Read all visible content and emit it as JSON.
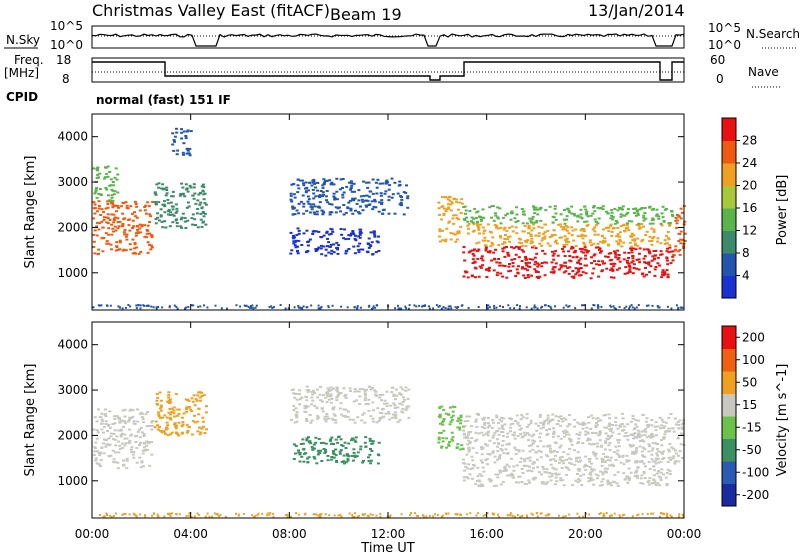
{
  "header": {
    "title": "Christmas Valley East (fitACF)",
    "beam": "Beam 19",
    "date": "13/Jan/2014"
  },
  "nsky_panel": {
    "left_label": "N.Sky",
    "right_label": "N.Search",
    "left_ticks": [
      "10^5",
      "10^0"
    ],
    "right_ticks": [
      "10^5",
      "10^0"
    ]
  },
  "freq_panel": {
    "left_label_1": "Freq.",
    "left_label_2": "[MHz]",
    "right_label": "Nave",
    "left_ticks": [
      "18",
      "8"
    ],
    "right_ticks": [
      "60",
      "0"
    ],
    "cpid_label": "CPID",
    "cpid_value": "normal (fast) 151 IF"
  },
  "chart_data": [
    {
      "type": "heatmap",
      "name": "power",
      "ylabel": "Slant Range [km]",
      "yticks": [
        1000,
        2000,
        3000,
        4000
      ],
      "ylim": [
        180,
        4500
      ],
      "colorbar_label": "Power [dB]",
      "colorbar_ticks": [
        "4",
        "8",
        "12",
        "16",
        "20",
        "24",
        "28"
      ],
      "colors": [
        "#1a32d2",
        "#2255b0",
        "#3d8a6a",
        "#5ab44a",
        "#a8c83a",
        "#f0a020",
        "#f05a10",
        "#e81010"
      ],
      "patches": [
        {
          "t0": 0.0,
          "t1": 2.4,
          "r0": 1400,
          "r1": 2600,
          "level": 6
        },
        {
          "t0": 0.0,
          "t1": 1.0,
          "r0": 2600,
          "r1": 3400,
          "level": 3
        },
        {
          "t0": 2.5,
          "t1": 4.6,
          "r0": 2000,
          "r1": 3000,
          "level": 2
        },
        {
          "t0": 3.2,
          "t1": 4.0,
          "r0": 3600,
          "r1": 4200,
          "level": 1
        },
        {
          "t0": 8.0,
          "t1": 12.8,
          "r0": 2300,
          "r1": 3100,
          "level": 1
        },
        {
          "t0": 8.0,
          "t1": 11.6,
          "r0": 1400,
          "r1": 2000,
          "level": 0
        },
        {
          "t0": 14.0,
          "t1": 15.0,
          "r0": 1700,
          "r1": 2700,
          "level": 5
        },
        {
          "t0": 15.0,
          "t1": 23.5,
          "r0": 900,
          "r1": 1600,
          "level": 7
        },
        {
          "t0": 15.0,
          "t1": 23.5,
          "r0": 1600,
          "r1": 2100,
          "level": 5
        },
        {
          "t0": 15.0,
          "t1": 23.5,
          "r0": 2100,
          "r1": 2500,
          "level": 3
        },
        {
          "t0": 23.5,
          "t1": 24.0,
          "r0": 1400,
          "r1": 2500,
          "level": 6
        }
      ]
    },
    {
      "type": "heatmap",
      "name": "velocity",
      "ylabel": "Slant Range [km]",
      "yticks": [
        1000,
        2000,
        3000,
        4000
      ],
      "ylim": [
        180,
        4500
      ],
      "xlabel": "Time UT",
      "xticks": [
        "00:00",
        "04:00",
        "08:00",
        "12:00",
        "16:00",
        "20:00",
        "00:00"
      ],
      "xlim": [
        0,
        24
      ],
      "colorbar_label": "Velocity [m s^-1]",
      "colorbar_ticks": [
        "200",
        "100",
        "50",
        "15",
        "-15",
        "-50",
        "-100",
        "-200"
      ],
      "colors": [
        "#1a2aa0",
        "#2a5ab4",
        "#3a9060",
        "#6ac24a",
        "#c8c8c0",
        "#f0a020",
        "#f06010",
        "#e81010"
      ],
      "patches": [
        {
          "t0": 0.0,
          "t1": 2.4,
          "r0": 1300,
          "r1": 2600,
          "level": 4
        },
        {
          "t0": 2.5,
          "t1": 4.6,
          "r0": 2000,
          "r1": 3000,
          "level": 5
        },
        {
          "t0": 8.0,
          "t1": 12.8,
          "r0": 2300,
          "r1": 3100,
          "level": 4
        },
        {
          "t0": 8.0,
          "t1": 11.6,
          "r0": 1400,
          "r1": 2000,
          "level": 2
        },
        {
          "t0": 14.0,
          "t1": 15.0,
          "r0": 1700,
          "r1": 2700,
          "level": 3
        },
        {
          "t0": 15.0,
          "t1": 23.5,
          "r0": 900,
          "r1": 2500,
          "level": 4
        },
        {
          "t0": 23.5,
          "t1": 24.0,
          "r0": 1400,
          "r1": 2400,
          "level": 4
        }
      ]
    }
  ]
}
